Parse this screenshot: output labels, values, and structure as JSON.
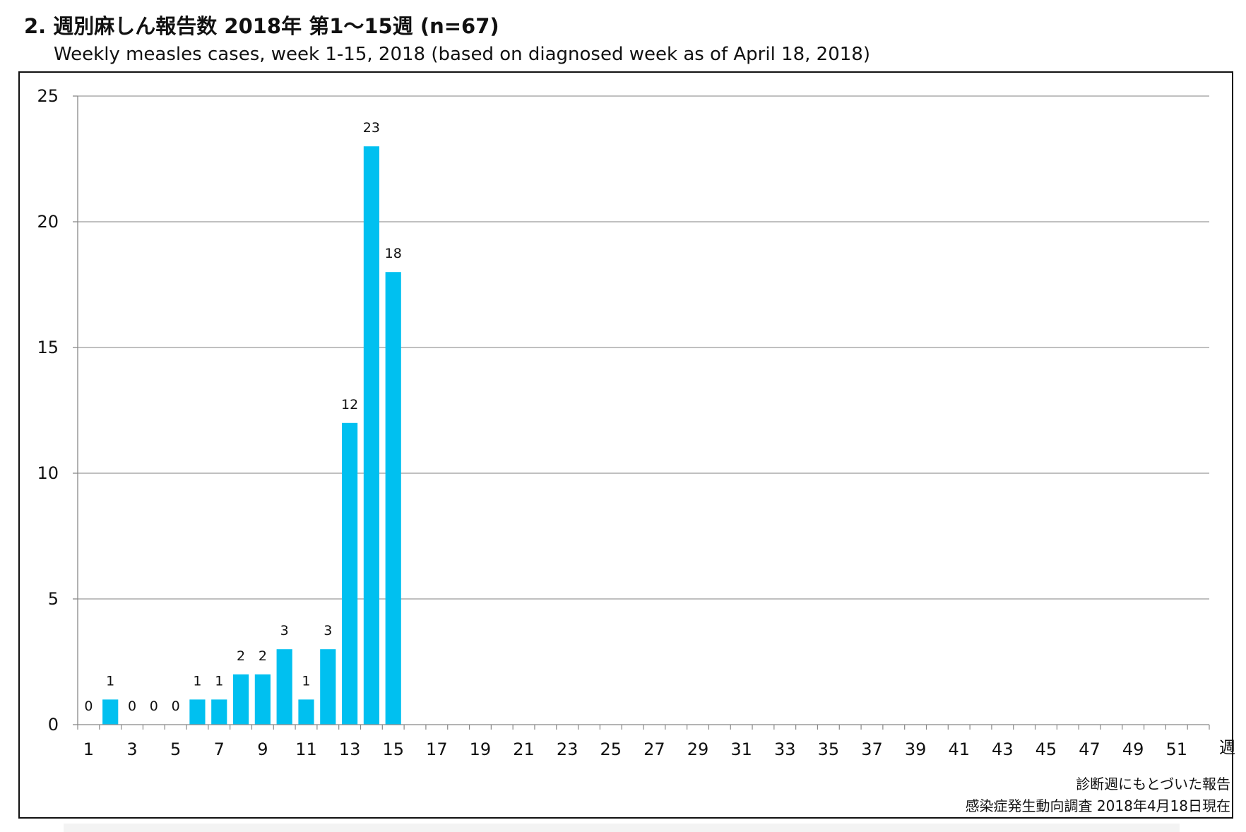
{
  "header": {
    "title": "2. 週別麻しん報告数  2018年 第1～15週 (n=67)",
    "subtitle": "Weekly measles cases, week 1-15, 2018 (based on diagnosed week as of April 18, 2018)"
  },
  "footer": {
    "note1": "診断週にもとづいた報告",
    "note2": "感染症発生動向調査 2018年4月18日現在"
  },
  "chart_data": {
    "type": "bar",
    "title": "2. 週別麻しん報告数  2018年 第1～15週 (n=67)",
    "subtitle": "Weekly measles cases, week 1-15, 2018 (based on diagnosed week as of April 18, 2018)",
    "xlabel": "週",
    "ylabel": "",
    "ylim": [
      0,
      25
    ],
    "yticks": [
      0,
      5,
      10,
      15,
      20,
      25
    ],
    "x_range": [
      1,
      52
    ],
    "xtick_labels": [
      "1",
      "3",
      "5",
      "7",
      "9",
      "11",
      "13",
      "15",
      "17",
      "19",
      "21",
      "23",
      "25",
      "27",
      "29",
      "31",
      "33",
      "35",
      "37",
      "39",
      "41",
      "43",
      "45",
      "47",
      "49",
      "51"
    ],
    "categories": [
      1,
      2,
      3,
      4,
      5,
      6,
      7,
      8,
      9,
      10,
      11,
      12,
      13,
      14,
      15
    ],
    "values": [
      0,
      1,
      0,
      0,
      0,
      1,
      1,
      2,
      2,
      3,
      1,
      3,
      12,
      23,
      18
    ],
    "data_labels": true,
    "bar_color": "#00c0f0",
    "grid": "horizontal",
    "legend": "none"
  }
}
